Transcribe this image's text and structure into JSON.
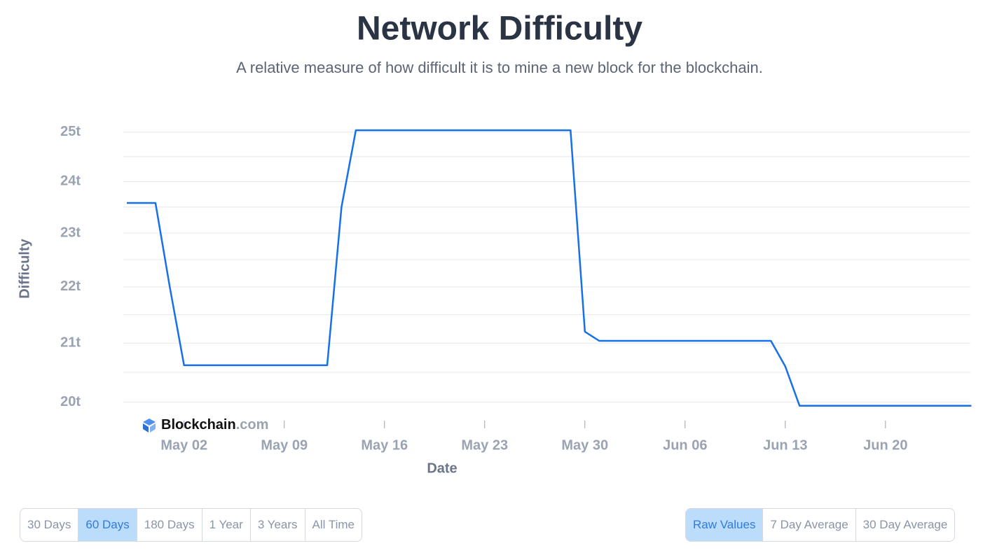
{
  "chart_data": {
    "type": "line",
    "title": "Network Difficulty",
    "subtitle": "A relative measure of how difficult it is to mine a new block for the blockchain.",
    "x_label": "Date",
    "y_label": "Difficulty",
    "x": [
      "Apr 28",
      "Apr 29",
      "Apr 30",
      "May 01",
      "May 02",
      "May 03",
      "May 04",
      "May 05",
      "May 06",
      "May 07",
      "May 08",
      "May 09",
      "May 10",
      "May 11",
      "May 12",
      "May 13",
      "May 14",
      "May 15",
      "May 16",
      "May 17",
      "May 18",
      "May 19",
      "May 20",
      "May 21",
      "May 22",
      "May 23",
      "May 24",
      "May 25",
      "May 26",
      "May 27",
      "May 28",
      "May 29",
      "May 30",
      "May 31",
      "Jun 01",
      "Jun 02",
      "Jun 03",
      "Jun 04",
      "Jun 05",
      "Jun 06",
      "Jun 07",
      "Jun 08",
      "Jun 09",
      "Jun 10",
      "Jun 11",
      "Jun 12",
      "Jun 13",
      "Jun 14",
      "Jun 15",
      "Jun 16",
      "Jun 17",
      "Jun 18",
      "Jun 19",
      "Jun 20",
      "Jun 21",
      "Jun 22",
      "Jun 23",
      "Jun 24",
      "Jun 25",
      "Jun 26"
    ],
    "series": [
      {
        "name": "Difficulty",
        "color": "#1670e8",
        "values": [
          23.58,
          23.58,
          23.58,
          22.0,
          20.62,
          20.62,
          20.62,
          20.62,
          20.62,
          20.62,
          20.62,
          20.62,
          20.62,
          20.62,
          20.62,
          23.5,
          25.04,
          25.04,
          25.04,
          25.04,
          25.04,
          25.04,
          25.04,
          25.04,
          25.04,
          25.04,
          25.04,
          25.04,
          25.04,
          25.04,
          25.04,
          25.04,
          21.2,
          21.04,
          21.04,
          21.04,
          21.04,
          21.04,
          21.04,
          21.04,
          21.04,
          21.04,
          21.04,
          21.04,
          21.04,
          21.04,
          20.6,
          19.94,
          19.94,
          19.94,
          19.94,
          19.94,
          19.94,
          19.94,
          19.94,
          19.94,
          19.94,
          19.94,
          19.94,
          19.94
        ]
      }
    ],
    "xticks": [
      "May 02",
      "May 09",
      "May 16",
      "May 23",
      "May 30",
      "Jun 06",
      "Jun 13",
      "Jun 20"
    ],
    "ylim": [
      19.8,
      25.1
    ],
    "log_scale": true,
    "yticks": [
      {
        "value": 20,
        "label": "20t"
      },
      {
        "value": 21,
        "label": "21t"
      },
      {
        "value": 22,
        "label": "22t"
      },
      {
        "value": 23,
        "label": "23t"
      },
      {
        "value": 24,
        "label": "24t"
      },
      {
        "value": 25,
        "label": "25t"
      }
    ],
    "gridlines": [
      20,
      20.5,
      21,
      21.5,
      22,
      22.5,
      23,
      23.5,
      24,
      24.5,
      25
    ],
    "watermark": {
      "name": "Blockchain",
      "suffix": ".com"
    }
  },
  "controls": {
    "range_buttons": [
      "30 Days",
      "60 Days",
      "180 Days",
      "1 Year",
      "3 Years",
      "All Time"
    ],
    "range_selected": 1,
    "view_buttons": [
      "Raw Values",
      "7 Day Average",
      "30 Day Average"
    ],
    "view_selected": 0
  }
}
